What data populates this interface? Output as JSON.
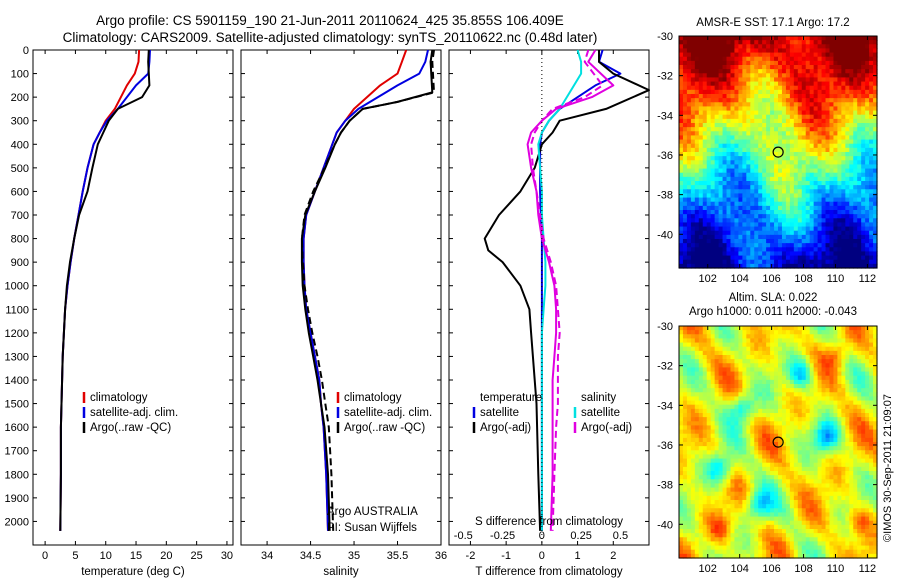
{
  "header": {
    "line1": "Argo profile: CS 5901159_190 21-Jun-2011 20110624_425 35.855S 106.409E",
    "line2": "Climatology: CARS2009. Satellite-adjusted climatology: synTS_20110622.nc (0.48d later)"
  },
  "colors": {
    "climatology": "#e00000",
    "satellite": "#0000e0",
    "argo": "#000000",
    "satellite_s": "#00e0e0",
    "argo_s": "#e000e0"
  },
  "chart_data": [
    {
      "type": "line",
      "panel": "temperature",
      "xlabel": "temperature (deg C)",
      "ylabel": "",
      "xlim": [
        -2,
        31
      ],
      "ylim": [
        2100,
        0
      ],
      "xticks": [
        "0",
        "5",
        "10",
        "15",
        "20",
        "25",
        "30"
      ],
      "yticks": [
        "0",
        "100",
        "200",
        "300",
        "400",
        "500",
        "600",
        "700",
        "800",
        "900",
        "1000",
        "1100",
        "1200",
        "1300",
        "1400",
        "1500",
        "1600",
        "1700",
        "1800",
        "1900",
        "2000"
      ],
      "legend": [
        "climatology",
        "satellite-adj. clim.",
        "Argo(..raw -QC)"
      ],
      "series": [
        {
          "name": "climatology",
          "color": "#e00000",
          "dash": false,
          "x": [
            15.5,
            15.4,
            14.8,
            13.5,
            11.5,
            10.0,
            9.0,
            8.0,
            7.0,
            6.2,
            5.5,
            4.8,
            4.2,
            3.7,
            3.3,
            3.1,
            2.9,
            2.8,
            2.7,
            2.6,
            2.6,
            2.5
          ],
          "y": [
            0,
            50,
            100,
            150,
            250,
            300,
            350,
            400,
            500,
            600,
            700,
            800,
            900,
            1000,
            1100,
            1200,
            1300,
            1400,
            1500,
            1600,
            1800,
            2040
          ]
        },
        {
          "name": "satellite-adj. clim.",
          "color": "#0000e0",
          "dash": false,
          "x": [
            17.3,
            17.2,
            17.0,
            15.0,
            12.0,
            10.2,
            9.0,
            8.0,
            7.0,
            6.2,
            5.5,
            4.8,
            4.2,
            3.7,
            3.3,
            3.1,
            2.9,
            2.8,
            2.7,
            2.6,
            2.6,
            2.5
          ],
          "y": [
            0,
            50,
            100,
            150,
            250,
            300,
            350,
            400,
            500,
            600,
            700,
            800,
            900,
            1000,
            1100,
            1200,
            1300,
            1400,
            1500,
            1600,
            1800,
            2040
          ]
        },
        {
          "name": "Argo(..raw -QC)",
          "color": "#000000",
          "dash": false,
          "x": [
            17.1,
            17.0,
            17.2,
            16.0,
            12.0,
            10.5,
            9.6,
            8.7,
            7.8,
            7.0,
            5.6,
            4.8,
            4.1,
            3.6,
            3.3,
            3.1,
            2.9,
            2.8,
            2.7,
            2.6,
            2.6,
            2.5
          ],
          "y": [
            0,
            50,
            150,
            200,
            250,
            300,
            350,
            400,
            500,
            600,
            700,
            800,
            900,
            1000,
            1100,
            1200,
            1300,
            1400,
            1500,
            1600,
            1800,
            2040
          ]
        }
      ]
    },
    {
      "type": "line",
      "panel": "salinity",
      "xlabel": "salinity",
      "ylabel": "",
      "xlim": [
        33.7,
        36.0
      ],
      "ylim": [
        2100,
        0
      ],
      "xticks": [
        "34",
        "34.5",
        "35",
        "35.5",
        "36"
      ],
      "legend": [
        "climatology",
        "satellite-adj. clim.",
        "Argo(..raw -QC)"
      ],
      "annotation": [
        "Argo AUSTRALIA",
        "PI: Susan Wijffels"
      ],
      "series": [
        {
          "name": "climatology",
          "color": "#e00000",
          "dash": false,
          "x": [
            35.6,
            35.55,
            35.5,
            35.3,
            35.0,
            34.9,
            34.8,
            34.75,
            34.65,
            34.55,
            34.45,
            34.42,
            34.42,
            34.43,
            34.45,
            34.5,
            34.55,
            34.6,
            34.62,
            34.65,
            34.68,
            34.7
          ],
          "y": [
            0,
            50,
            100,
            150,
            250,
            300,
            350,
            400,
            500,
            600,
            700,
            800,
            900,
            1000,
            1100,
            1200,
            1300,
            1400,
            1500,
            1600,
            1800,
            2040
          ]
        },
        {
          "name": "satellite-adj. clim.",
          "color": "#0000e0",
          "dash": false,
          "x": [
            35.85,
            35.82,
            35.75,
            35.5,
            35.05,
            34.9,
            34.8,
            34.75,
            34.65,
            34.55,
            34.45,
            34.42,
            34.42,
            34.43,
            34.45,
            34.5,
            34.55,
            34.6,
            34.62,
            34.65,
            34.68,
            34.7
          ],
          "y": [
            0,
            50,
            100,
            150,
            250,
            300,
            350,
            400,
            500,
            600,
            700,
            800,
            900,
            1000,
            1100,
            1200,
            1300,
            1400,
            1500,
            1600,
            1800,
            2040
          ]
        },
        {
          "name": "Argo(..raw -QC)",
          "color": "#000000",
          "dash": false,
          "x": [
            35.9,
            35.88,
            35.9,
            35.5,
            35.1,
            34.95,
            34.85,
            34.78,
            34.67,
            34.55,
            34.44,
            34.4,
            34.4,
            34.41,
            34.44,
            34.48,
            34.53,
            34.58,
            34.62,
            34.66,
            34.7,
            34.72
          ],
          "y": [
            0,
            50,
            180,
            220,
            250,
            300,
            350,
            400,
            500,
            600,
            700,
            800,
            900,
            1000,
            1100,
            1200,
            1300,
            1400,
            1500,
            1600,
            1800,
            2040
          ]
        },
        {
          "name": "Argo(..raw -QC) adj",
          "color": "#000000",
          "dash": true,
          "x": [
            35.92,
            35.9,
            35.92,
            35.5,
            35.1,
            34.95,
            34.85,
            34.78,
            34.66,
            34.53,
            34.43,
            34.4,
            34.41,
            34.43,
            34.47,
            34.52,
            34.58,
            34.63,
            34.67,
            34.71,
            34.74,
            34.76
          ],
          "y": [
            0,
            50,
            180,
            220,
            250,
            300,
            350,
            400,
            500,
            600,
            700,
            800,
            900,
            1000,
            1100,
            1200,
            1300,
            1400,
            1500,
            1600,
            1800,
            2040
          ]
        }
      ]
    },
    {
      "type": "line",
      "panel": "difference",
      "xlabel": "T difference from climatology",
      "xlabel2": "S difference from climatology",
      "xlim": [
        -2.6,
        3.0
      ],
      "ylim": [
        2100,
        0
      ],
      "xticks": [
        "-2",
        "-1",
        "0",
        "1",
        "2"
      ],
      "xticks_s": [
        "-0.5",
        "-0.25",
        "0",
        "0.25",
        "0.5"
      ],
      "legend_t": [
        "temperature",
        "satellite",
        "Argo(-adj)"
      ],
      "legend_s": [
        "salinity",
        "satellite",
        "Argo(-adj)"
      ],
      "series": [
        {
          "name": "T satellite",
          "color": "#0000e0",
          "dash": false,
          "x": [
            1.7,
            1.6,
            2.2,
            1.5,
            0.5,
            0.2,
            0.0,
            -0.05,
            -0.05,
            -0.05,
            -0.03,
            0.0,
            0.0,
            0.0,
            0.0,
            0.0,
            0.0,
            0.0,
            0.0,
            0.0,
            0.0,
            0.0
          ],
          "y": [
            0,
            50,
            100,
            150,
            250,
            300,
            350,
            400,
            500,
            600,
            700,
            800,
            900,
            1000,
            1100,
            1200,
            1300,
            1400,
            1500,
            1600,
            1800,
            2040
          ]
        },
        {
          "name": "T Argo(-adj)",
          "color": "#000000",
          "dash": false,
          "x": [
            1.6,
            1.6,
            2.0,
            3.0,
            1.8,
            0.5,
            0.3,
            0.0,
            -0.2,
            -0.6,
            -1.2,
            -1.6,
            -1.5,
            -1.1,
            -0.6,
            -0.35,
            -0.3,
            -0.25,
            -0.2,
            -0.15,
            -0.1,
            -0.05
          ],
          "y": [
            0,
            50,
            100,
            170,
            250,
            300,
            350,
            400,
            500,
            600,
            700,
            800,
            850,
            900,
            1000,
            1100,
            1200,
            1300,
            1400,
            1500,
            1800,
            2040
          ]
        },
        {
          "name": "S satellite",
          "color": "#00e0e0",
          "dash": false,
          "x": [
            1.0,
            1.1,
            1.1,
            0.9,
            0.5,
            0.2,
            0.0,
            -0.1,
            -0.05,
            0.0,
            0.0,
            0.05,
            0.1,
            0.1,
            0.05,
            0.0,
            0.0,
            0.0,
            0.0,
            0.0,
            0.0,
            0.0
          ],
          "y": [
            0,
            50,
            100,
            150,
            250,
            300,
            350,
            400,
            500,
            600,
            700,
            800,
            900,
            1000,
            1100,
            1200,
            1300,
            1400,
            1500,
            1600,
            1800,
            2040
          ]
        },
        {
          "name": "S Argo(-adj)",
          "color": "#e000e0",
          "dash": false,
          "x": [
            1.5,
            1.3,
            2.0,
            1.4,
            0.4,
            0.0,
            -0.3,
            -0.4,
            -0.3,
            -0.15,
            -0.1,
            0.0,
            0.2,
            0.35,
            0.4,
            0.4,
            0.35,
            0.3,
            0.3,
            0.3,
            0.3,
            0.25
          ],
          "y": [
            0,
            50,
            150,
            200,
            250,
            300,
            350,
            400,
            500,
            600,
            700,
            800,
            900,
            1000,
            1100,
            1200,
            1300,
            1400,
            1500,
            1600,
            1800,
            2040
          ]
        },
        {
          "name": "S Argo(-adj) dashed",
          "color": "#e000e0",
          "dash": true,
          "x": [
            1.3,
            1.2,
            1.7,
            1.2,
            0.3,
            0.0,
            -0.2,
            -0.3,
            -0.25,
            -0.15,
            -0.05,
            0.05,
            0.25,
            0.4,
            0.45,
            0.5,
            0.45,
            0.45,
            0.45,
            0.4,
            0.35,
            0.3
          ],
          "y": [
            0,
            50,
            150,
            200,
            250,
            300,
            350,
            400,
            500,
            600,
            700,
            800,
            900,
            1000,
            1100,
            1200,
            1300,
            1400,
            1500,
            1600,
            1800,
            2040
          ]
        }
      ]
    },
    {
      "type": "heatmap",
      "panel": "sst_map",
      "title": "AMSR-E SST: 17.1  Argo: 17.2",
      "xticks": [
        "102",
        "104",
        "106",
        "108",
        "110",
        "112"
      ],
      "yticks": [
        "-30",
        "-32",
        "-34",
        "-36",
        "-38",
        "-40"
      ],
      "xlim": [
        100.2,
        112.6
      ],
      "ylim": [
        -41.7,
        -30
      ],
      "marker": {
        "lon": 106.409,
        "lat": -35.855
      }
    },
    {
      "type": "heatmap",
      "panel": "sla_map",
      "title": "Altim. SLA: 0.022",
      "subtitle": "Argo h1000: 0.011 h2000: -0.043",
      "xticks": [
        "102",
        "104",
        "106",
        "108",
        "110",
        "112"
      ],
      "yticks": [
        "-30",
        "-32",
        "-34",
        "-36",
        "-38",
        "-40"
      ],
      "xlim": [
        100.2,
        112.6
      ],
      "ylim": [
        -41.7,
        -30
      ],
      "marker": {
        "lon": 106.409,
        "lat": -35.855
      }
    }
  ],
  "footer": {
    "stamp": "©IMOS 30-Sep-2011 21:09:07"
  }
}
